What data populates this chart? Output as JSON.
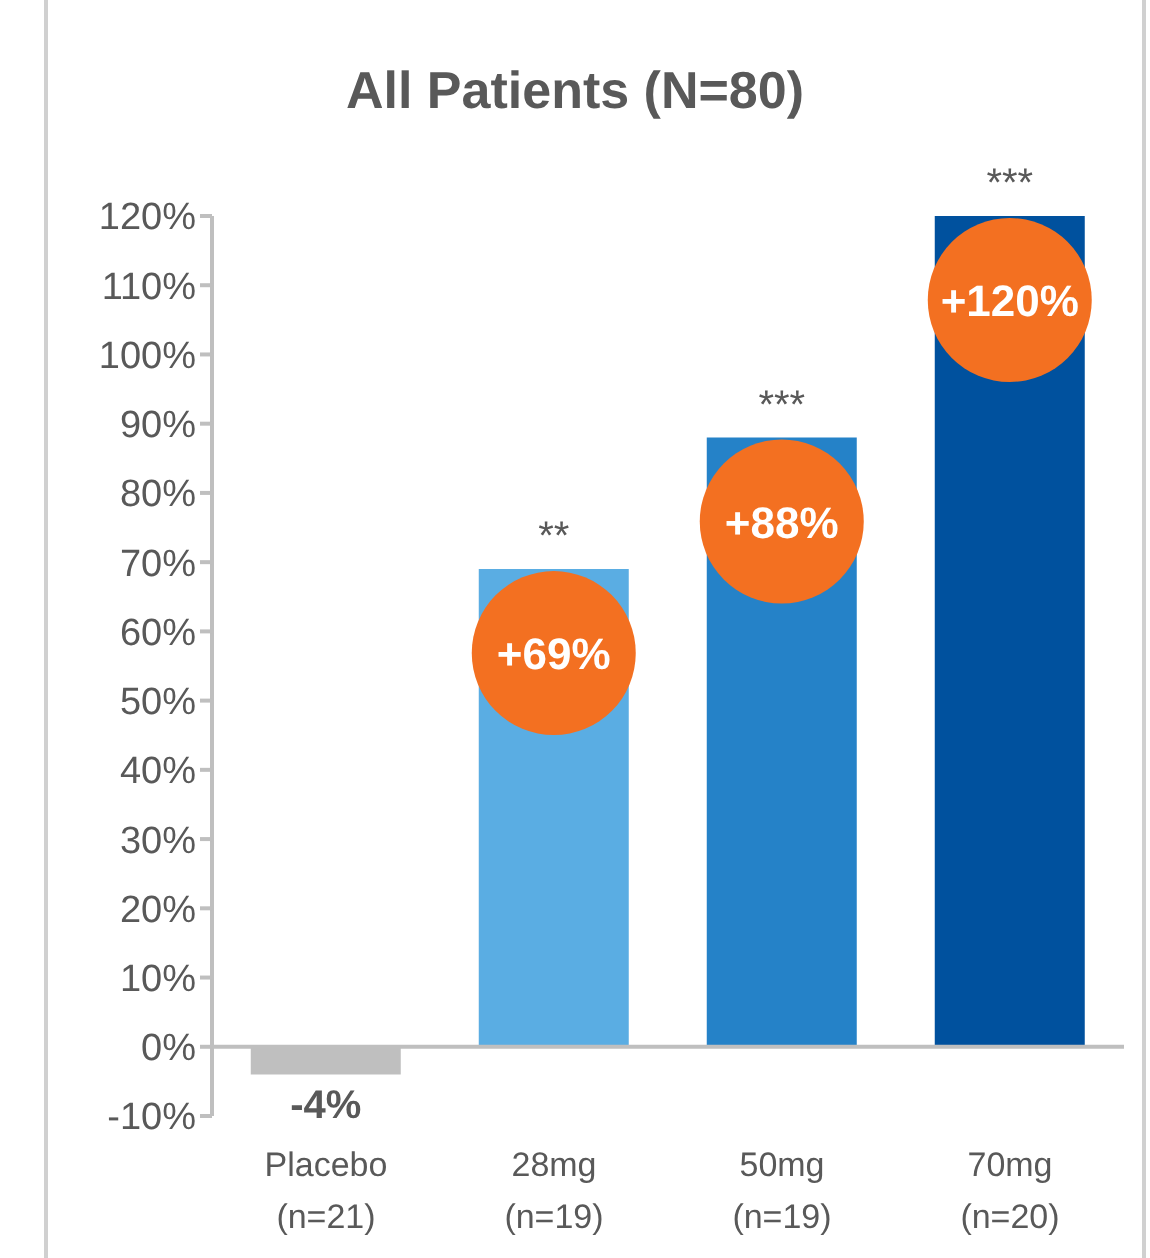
{
  "chart_data": {
    "type": "bar",
    "title": "All Patients (N=80)",
    "categories": [
      "Placebo\n(n=21)",
      "28mg\n(n=19)",
      "50mg\n(n=19)",
      "70mg\n(n=20)"
    ],
    "values": [
      -4,
      69,
      88,
      120
    ],
    "colors": [
      "#bfbfbf",
      "#5aade3",
      "#2582c8",
      "#00519e"
    ],
    "value_labels": [
      "-4%",
      "+69%",
      "+88%",
      "+120%"
    ],
    "annotations": [
      {
        "text": "**",
        "x": "28mg\n(n=19)",
        "y": 69
      },
      {
        "text": "***",
        "x": "50mg\n(n=19)",
        "y": 88
      },
      {
        "text": "***",
        "x": "70mg\n(n=20)",
        "y": 120
      }
    ],
    "ylim": [
      -10,
      120
    ],
    "yticks": [
      {
        "value": -10,
        "label": "-10%"
      },
      {
        "value": 0,
        "label": "0%"
      },
      {
        "value": 10,
        "label": "10%"
      },
      {
        "value": 20,
        "label": "20%"
      },
      {
        "value": 30,
        "label": "30%"
      },
      {
        "value": 40,
        "label": "40%"
      },
      {
        "value": 50,
        "label": "50%"
      },
      {
        "value": 60,
        "label": "60%"
      },
      {
        "value": 70,
        "label": "70%"
      },
      {
        "value": 80,
        "label": "80%"
      },
      {
        "value": 90,
        "label": "90%"
      },
      {
        "value": 100,
        "label": "100%"
      },
      {
        "value": 110,
        "label": "110%"
      },
      {
        "value": 120,
        "label": "120%"
      }
    ],
    "ref_lines": [
      {
        "axis": "y",
        "value": 0,
        "color": "#bfbfbf"
      }
    ],
    "grid": false,
    "legend": false
  }
}
